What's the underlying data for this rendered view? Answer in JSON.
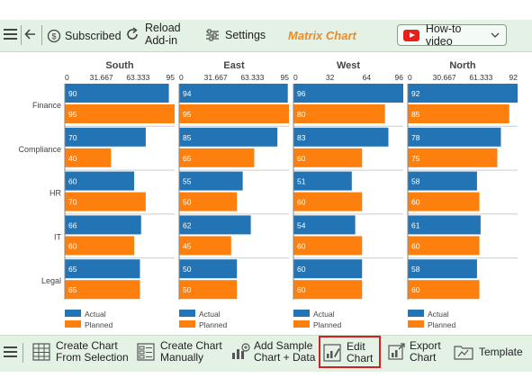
{
  "toolbar": {
    "subscribed_label": "Subscribed",
    "reload_line1": "Reload",
    "reload_line2": "Add-in",
    "settings_label": "Settings",
    "app_title": "Matrix Chart",
    "howto_label": "How-to video"
  },
  "bottom_toolbar": {
    "create_selection_line1": "Create Chart",
    "create_selection_line2": "From Selection",
    "create_manual_line1": "Create Chart",
    "create_manual_line2": "Manually",
    "sample_line1": "Add Sample",
    "sample_line2": "Chart + Data",
    "edit_line1": "Edit",
    "edit_line2": "Chart",
    "export_line1": "Export",
    "export_line2": "Chart",
    "template_label": "Template"
  },
  "colors": {
    "actual": "#2374b5",
    "planned": "#fd7f0d",
    "title_accent": "#f08a24"
  },
  "chart_data": {
    "type": "bar",
    "orientation": "horizontal",
    "categories": [
      "Finance",
      "Compliance",
      "HR",
      "IT",
      "Legal"
    ],
    "legend": [
      "Actual",
      "Planned"
    ],
    "legend_placement": "bottom-left of each panel",
    "panels": [
      {
        "title": "South",
        "xlim": [
          0,
          95
        ],
        "ticks": [
          "0",
          "31.667",
          "63.333",
          "95"
        ],
        "series": [
          {
            "name": "Actual",
            "values": [
              90,
              70,
              60,
              66,
              65
            ]
          },
          {
            "name": "Planned",
            "values": [
              95,
              40,
              70,
              60,
              65
            ]
          }
        ]
      },
      {
        "title": "East",
        "xlim": [
          0,
          95
        ],
        "ticks": [
          "0",
          "31.667",
          "63.333",
          "95"
        ],
        "series": [
          {
            "name": "Actual",
            "values": [
              94,
              85,
              55,
              62,
              50
            ]
          },
          {
            "name": "Planned",
            "values": [
              95,
              65,
              50,
              45,
              50
            ]
          }
        ]
      },
      {
        "title": "West",
        "xlim": [
          0,
          96
        ],
        "ticks": [
          "0",
          "32",
          "64",
          "96"
        ],
        "series": [
          {
            "name": "Actual",
            "values": [
              96,
              83,
              51,
              54,
              60
            ]
          },
          {
            "name": "Planned",
            "values": [
              80,
              60,
              60,
              60,
              60
            ]
          }
        ]
      },
      {
        "title": "North",
        "xlim": [
          0,
          92
        ],
        "ticks": [
          "0",
          "30.667",
          "61.333",
          "92"
        ],
        "series": [
          {
            "name": "Actual",
            "values": [
              92,
              78,
              58,
              61,
              58
            ]
          },
          {
            "name": "Planned",
            "values": [
              85,
              75,
              60,
              60,
              60
            ]
          }
        ]
      }
    ]
  }
}
